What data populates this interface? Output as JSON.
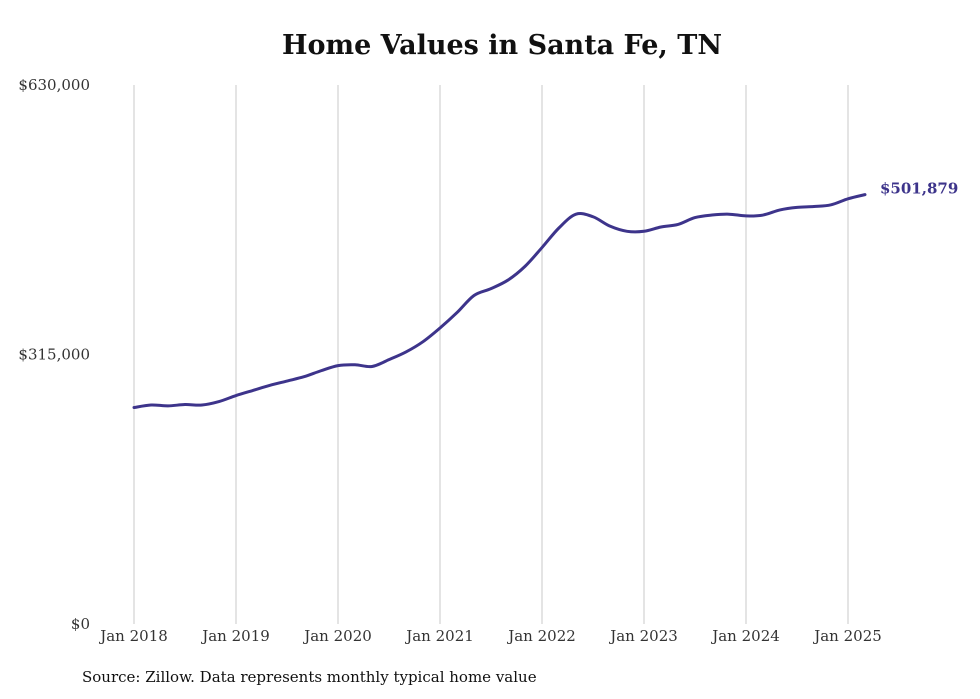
{
  "chart_data": {
    "type": "line",
    "title": "Home Values in Santa Fe, TN",
    "xlabel": "",
    "ylabel": "",
    "x_ticks": [
      "Jan 2018",
      "Jan 2019",
      "Jan 2020",
      "Jan 2021",
      "Jan 2022",
      "Jan 2023",
      "Jan 2024",
      "Jan 2025"
    ],
    "y_ticks": [
      "$0",
      "$315,000",
      "$630,000"
    ],
    "ylim": [
      0,
      630000
    ],
    "grid": "vertical",
    "line_color": "#3d348b",
    "end_label": "$501,879",
    "series": [
      {
        "x": [
          "2018-01",
          "2018-03",
          "2018-05",
          "2018-07",
          "2018-09",
          "2018-11",
          "2019-01",
          "2019-03",
          "2019-05",
          "2019-07",
          "2019-09",
          "2019-11",
          "2020-01",
          "2020-03",
          "2020-05",
          "2020-07",
          "2020-09",
          "2020-11",
          "2021-01",
          "2021-03",
          "2021-05",
          "2021-07",
          "2021-09",
          "2021-11",
          "2022-01",
          "2022-03",
          "2022-05",
          "2022-07",
          "2022-09",
          "2022-11",
          "2023-01",
          "2023-03",
          "2023-05",
          "2023-07",
          "2023-09",
          "2023-11",
          "2024-01",
          "2024-03",
          "2024-05",
          "2024-07",
          "2024-09",
          "2024-11",
          "2025-01",
          "2025-03"
        ],
        "values": [
          253000,
          256000,
          255000,
          256500,
          256000,
          260000,
          267000,
          273000,
          279000,
          284000,
          289000,
          296000,
          302000,
          303000,
          301000,
          309000,
          318000,
          330000,
          346000,
          364000,
          384000,
          392000,
          402000,
          418000,
          440000,
          463000,
          479000,
          476000,
          465000,
          459000,
          459000,
          464000,
          467000,
          475000,
          478000,
          479000,
          477000,
          478000,
          484000,
          487000,
          488000,
          490000,
          497000,
          501879
        ]
      }
    ]
  },
  "source": "Source: Zillow. Data represents monthly typical home value"
}
